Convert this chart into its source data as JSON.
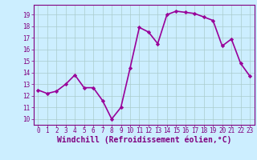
{
  "x": [
    0,
    1,
    2,
    3,
    4,
    5,
    6,
    7,
    8,
    9,
    10,
    11,
    12,
    13,
    14,
    15,
    16,
    17,
    18,
    19,
    20,
    21,
    22,
    23
  ],
  "y": [
    12.5,
    12.2,
    12.4,
    13.0,
    13.8,
    12.7,
    12.7,
    11.6,
    10.0,
    11.0,
    14.4,
    17.9,
    17.5,
    16.5,
    19.0,
    19.3,
    19.2,
    19.1,
    18.8,
    18.5,
    16.3,
    16.9,
    14.8,
    13.7
  ],
  "line_color": "#990099",
  "marker": "D",
  "marker_size": 2.2,
  "bg_color": "#cceeff",
  "grid_color": "#aacccc",
  "xlabel": "Windchill (Refroidissement éolien,°C)",
  "ylim": [
    9.5,
    19.85
  ],
  "xlim": [
    -0.5,
    23.5
  ],
  "yticks": [
    10,
    11,
    12,
    13,
    14,
    15,
    16,
    17,
    18,
    19
  ],
  "xticks": [
    0,
    1,
    2,
    3,
    4,
    5,
    6,
    7,
    8,
    9,
    10,
    11,
    12,
    13,
    14,
    15,
    16,
    17,
    18,
    19,
    20,
    21,
    22,
    23
  ],
  "tick_color": "#800080",
  "tick_fontsize": 5.5,
  "xlabel_fontsize": 7.0,
  "linewidth": 1.2,
  "spine_color": "#800080"
}
